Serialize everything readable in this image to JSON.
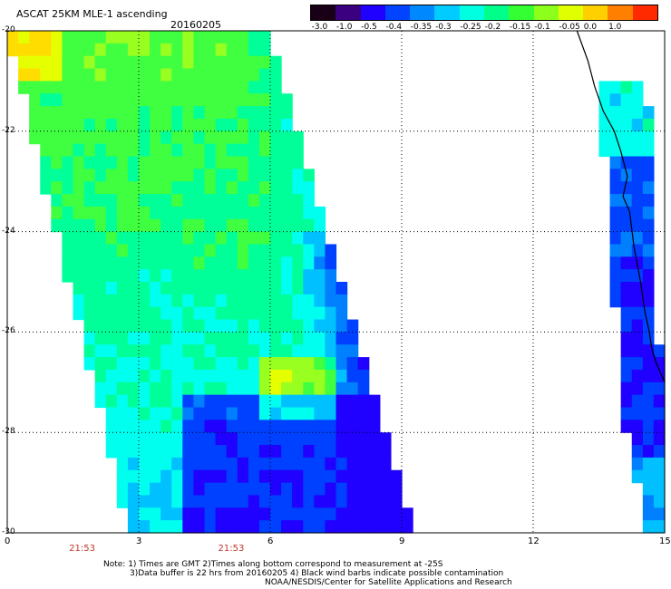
{
  "header": {
    "title": "ASCAT 25KM MLE-1 ascending",
    "date": "20160205"
  },
  "colorbar": {
    "labels": [
      "-3.0",
      "-1.0",
      "-0.5",
      "-0.4",
      "-0.35",
      "-0.3",
      "-0.25",
      "-0.2",
      "-0.15",
      "-0.1",
      "-0.05",
      "0.0",
      "1.0"
    ],
    "colors": [
      "#1a0017",
      "#3b007f",
      "#2000ff",
      "#0044ff",
      "#0088ff",
      "#00ccff",
      "#00ffe0",
      "#00ff8a",
      "#33ff33",
      "#8cff1a",
      "#e0ff00",
      "#ffd000",
      "#ff8000",
      "#ff2a00"
    ]
  },
  "chart_data": {
    "type": "heatmap",
    "title": "ASCAT 25KM MLE-1 ascending",
    "xlim": [
      0,
      15
    ],
    "ylim": [
      -30,
      -20
    ],
    "x_ticks": [
      0,
      3,
      6,
      9,
      12,
      15
    ],
    "y_ticks": [
      -20,
      -22,
      -24,
      -26,
      -28,
      -30
    ],
    "x_tick_labels": [
      "0",
      "3",
      "6",
      "9",
      "12",
      "15"
    ],
    "y_tick_labels": [
      "-20",
      "-22",
      "-24",
      "-26",
      "-28",
      "-30"
    ],
    "time_labels": [
      {
        "x": 1.7,
        "label": "21:53"
      },
      {
        "x": 5.1,
        "label": "21:53"
      }
    ],
    "grid": true,
    "swaths": [
      {
        "name": "west",
        "corners": [
          [
            0,
            -20
          ],
          [
            6.0,
            -20
          ],
          [
            9.3,
            -30
          ],
          [
            2.8,
            -30
          ]
        ]
      },
      {
        "name": "east",
        "corners": [
          [
            13.5,
            -21.0
          ],
          [
            14.6,
            -21.0
          ],
          [
            15.0,
            -28.5
          ],
          [
            15.0,
            -30
          ],
          [
            14.6,
            -30
          ],
          [
            14.1,
            -28
          ]
        ]
      }
    ],
    "coastline": [
      [
        13.0,
        -20.0
      ],
      [
        13.25,
        -20.6
      ],
      [
        13.4,
        -21.1
      ],
      [
        13.6,
        -21.6
      ],
      [
        13.85,
        -22.0
      ],
      [
        14.0,
        -22.4
      ],
      [
        14.15,
        -22.9
      ],
      [
        14.05,
        -23.3
      ],
      [
        14.2,
        -23.6
      ],
      [
        14.3,
        -24.3
      ],
      [
        14.45,
        -25.0
      ],
      [
        14.55,
        -25.6
      ],
      [
        14.65,
        -26.0
      ],
      [
        14.7,
        -26.3
      ],
      [
        14.8,
        -26.6
      ],
      [
        15.0,
        -27.0
      ]
    ]
  },
  "notes": {
    "line1": "Note: 1) Times are GMT 2)Times along bottom correspond to measurement at -25S",
    "line2": "3)Data buffer is 22 hrs from 20160205 4) Black wind barbs indicate possible contamination",
    "line3": "NOAA/NESDIS/Center for Satellite Applications and Research"
  }
}
